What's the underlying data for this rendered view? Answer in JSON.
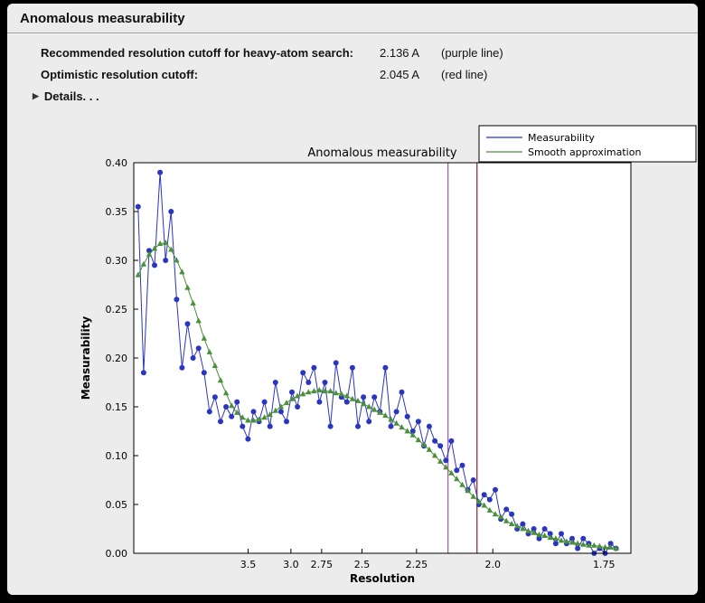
{
  "panel": {
    "title": "Anomalous measurability"
  },
  "cutoffs": [
    {
      "label": "Recommended resolution cutoff for heavy-atom search:",
      "value": "2.136 A",
      "note": "(purple line)"
    },
    {
      "label": "Optimistic resolution cutoff:",
      "value": "2.045 A",
      "note": "(red line)"
    }
  ],
  "details": {
    "label": "Details. . .",
    "icon": "right-triangle"
  },
  "colors": {
    "page_bg": "#000000",
    "panel_bg": "#ececec",
    "measurability_blue": "#2a35c0",
    "smooth_green": "#4a8f3a",
    "purple_line": "#b45cb4",
    "red_line": "#963232"
  },
  "chart_data": {
    "type": "line",
    "title": "Anomalous measurability",
    "xlabel": "Resolution",
    "ylabel": "Measurability",
    "ylim": [
      0.0,
      0.4
    ],
    "y_ticks": [
      0.0,
      0.05,
      0.1,
      0.15,
      0.2,
      0.25,
      0.3,
      0.35,
      0.4
    ],
    "x_axis_note": "resolution d in Angstrom, plotted on a 1/d^2 scale, decreasing d to the right",
    "xlim_s2": [
      0.003,
      0.345
    ],
    "x_ticks": [
      {
        "d": 3.5,
        "label": "3.5"
      },
      {
        "d": 3.0,
        "label": "3.0"
      },
      {
        "d": 2.75,
        "label": "2.75"
      },
      {
        "d": 2.5,
        "label": "2.5"
      },
      {
        "d": 2.25,
        "label": "2.25"
      },
      {
        "d": 2.0,
        "label": "2.0"
      },
      {
        "d": 1.75,
        "label": "1.75"
      }
    ],
    "vlines": [
      {
        "d": 2.136,
        "color": "#b45cb4",
        "meaning": "recommended resolution cutoff (purple line)"
      },
      {
        "d": 2.045,
        "color": "#963232",
        "meaning": "optimistic resolution cutoff (red line)"
      }
    ],
    "legend": {
      "position": "top-right",
      "entries": [
        "Measurability",
        "Smooth approximation"
      ]
    },
    "x_s2": [
      0.006,
      0.0098,
      0.0136,
      0.0173,
      0.0211,
      0.0249,
      0.0287,
      0.0325,
      0.0362,
      0.04,
      0.0438,
      0.0476,
      0.0514,
      0.0551,
      0.0589,
      0.0627,
      0.0665,
      0.0703,
      0.074,
      0.0778,
      0.0816,
      0.0854,
      0.0892,
      0.0929,
      0.0967,
      0.1005,
      0.1043,
      0.1081,
      0.1118,
      0.1156,
      0.1194,
      0.1232,
      0.127,
      0.1307,
      0.1345,
      0.1383,
      0.1421,
      0.1459,
      0.1496,
      0.1534,
      0.1572,
      0.161,
      0.1648,
      0.1685,
      0.1723,
      0.1761,
      0.1799,
      0.1837,
      0.1874,
      0.1912,
      0.195,
      0.1988,
      0.2026,
      0.2063,
      0.2101,
      0.2139,
      0.2177,
      0.2215,
      0.2252,
      0.229,
      0.2328,
      0.2366,
      0.2404,
      0.2441,
      0.2479,
      0.2517,
      0.2555,
      0.2593,
      0.263,
      0.2668,
      0.2706,
      0.2744,
      0.2782,
      0.2819,
      0.2857,
      0.2895,
      0.2933,
      0.2971,
      0.3008,
      0.3046,
      0.3084,
      0.3122,
      0.316,
      0.3197,
      0.3235,
      0.3273,
      0.3311,
      0.3348
    ],
    "series": [
      {
        "name": "Measurability",
        "color": "#2a35c0",
        "marker": "circle",
        "values": [
          0.355,
          0.185,
          0.31,
          0.295,
          0.39,
          0.3,
          0.35,
          0.26,
          0.19,
          0.235,
          0.2,
          0.21,
          0.185,
          0.145,
          0.16,
          0.135,
          0.15,
          0.14,
          0.155,
          0.13,
          0.117,
          0.145,
          0.135,
          0.155,
          0.13,
          0.175,
          0.145,
          0.135,
          0.165,
          0.15,
          0.185,
          0.175,
          0.19,
          0.155,
          0.175,
          0.13,
          0.195,
          0.16,
          0.155,
          0.19,
          0.13,
          0.16,
          0.135,
          0.16,
          0.145,
          0.19,
          0.13,
          0.145,
          0.165,
          0.14,
          0.125,
          0.135,
          0.11,
          0.13,
          0.115,
          0.11,
          0.095,
          0.115,
          0.085,
          0.09,
          0.065,
          0.075,
          0.05,
          0.06,
          0.055,
          0.065,
          0.035,
          0.045,
          0.04,
          0.025,
          0.03,
          0.02,
          0.025,
          0.015,
          0.025,
          0.02,
          0.01,
          0.02,
          0.01,
          0.015,
          0.005,
          0.015,
          0.01,
          0.0,
          0.005,
          0.0,
          0.01,
          0.005
        ]
      },
      {
        "name": "Smooth approximation",
        "color": "#4a8f3a",
        "marker": "triangle",
        "values": [
          0.285,
          0.296,
          0.306,
          0.312,
          0.317,
          0.318,
          0.311,
          0.3,
          0.288,
          0.272,
          0.256,
          0.238,
          0.22,
          0.206,
          0.192,
          0.177,
          0.164,
          0.151,
          0.144,
          0.139,
          0.136,
          0.136,
          0.137,
          0.139,
          0.142,
          0.146,
          0.15,
          0.154,
          0.158,
          0.161,
          0.163,
          0.165,
          0.166,
          0.167,
          0.166,
          0.166,
          0.164,
          0.163,
          0.161,
          0.158,
          0.156,
          0.153,
          0.15,
          0.147,
          0.144,
          0.141,
          0.137,
          0.133,
          0.129,
          0.125,
          0.121,
          0.116,
          0.111,
          0.106,
          0.1,
          0.094,
          0.088,
          0.082,
          0.076,
          0.07,
          0.064,
          0.058,
          0.053,
          0.049,
          0.044,
          0.04,
          0.037,
          0.033,
          0.03,
          0.028,
          0.025,
          0.023,
          0.021,
          0.019,
          0.018,
          0.016,
          0.015,
          0.013,
          0.012,
          0.011,
          0.01,
          0.009,
          0.008,
          0.008,
          0.007,
          0.006,
          0.006,
          0.005
        ]
      }
    ]
  }
}
